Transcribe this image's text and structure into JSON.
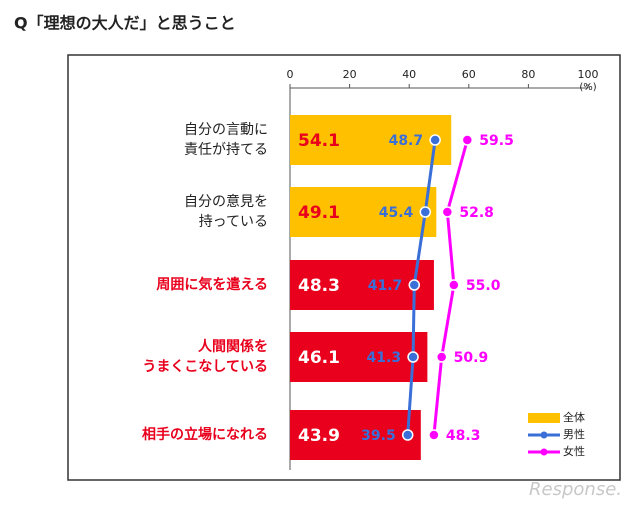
{
  "chart_data": {
    "type": "bar_line",
    "title": "Q「理想の大人だ」と思うこと",
    "categories": [
      "自分の言動に\n責任が持てる",
      "自分の意見を\n持っている",
      "周囲に気を遣える",
      "人間関係を\nうまくこなしている",
      "相手の立場になれる"
    ],
    "category_colors": [
      "#222222",
      "#222222",
      "#e8001c",
      "#e8001c",
      "#e8001c"
    ],
    "xlim": [
      0,
      100
    ],
    "xticks": [
      0,
      20,
      40,
      60,
      80,
      100
    ],
    "unit": "(%)",
    "legend": "lower right",
    "watermark": "Response.",
    "series": [
      {
        "name": "全体",
        "type": "bar",
        "colors": [
          "#ffc000",
          "#ffc000",
          "#e8001c",
          "#e8001c",
          "#e8001c"
        ],
        "label_colors": [
          "#e8001c",
          "#e8001c",
          "#ffffff",
          "#ffffff",
          "#ffffff"
        ],
        "legend_color": "#ffc000",
        "values": [
          54.1,
          49.1,
          48.3,
          46.1,
          43.9
        ]
      },
      {
        "name": "男性",
        "type": "line",
        "color": "#3a6fd8",
        "values": [
          48.7,
          45.4,
          41.7,
          41.3,
          39.5
        ]
      },
      {
        "name": "女性",
        "type": "line",
        "color": "#ff00ff",
        "values": [
          59.5,
          52.8,
          55.0,
          50.9,
          48.3
        ],
        "value_labels": [
          "59.5",
          "52.8",
          "55.0",
          "50.9",
          "48.3"
        ]
      }
    ]
  }
}
